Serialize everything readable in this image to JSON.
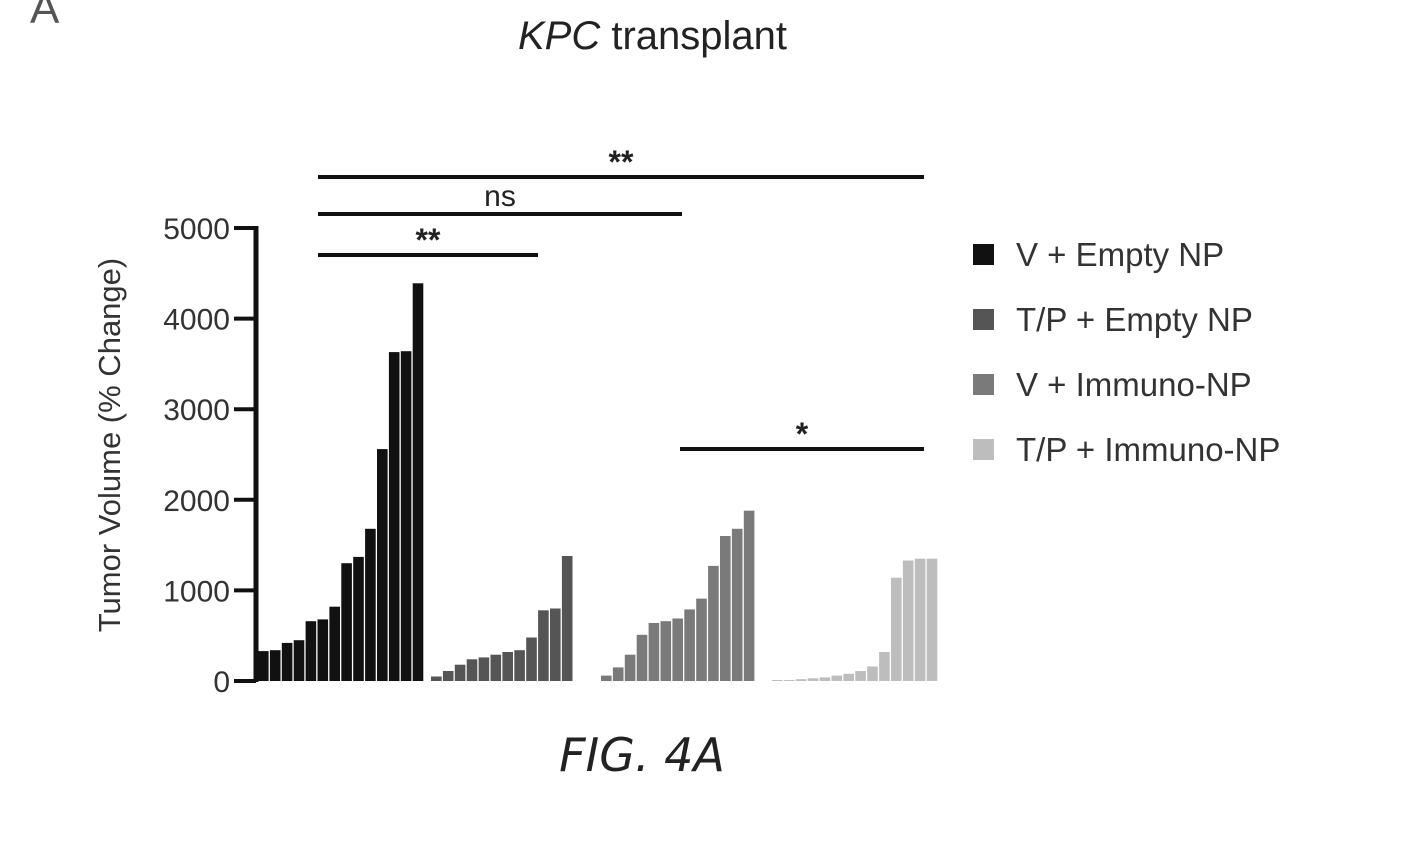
{
  "panel_letter": "A",
  "figure_caption": "FIG. 4A",
  "chart_data": {
    "type": "bar",
    "title_italic": "KPC",
    "title_rest": " transplant",
    "xlabel": "",
    "ylabel": "Tumor Volume (% Change)",
    "ylim": [
      0,
      5000
    ],
    "yticks": [
      0,
      1000,
      2000,
      3000,
      4000,
      5000
    ],
    "ytick_labels": [
      "0",
      "1000",
      "2000",
      "3000",
      "4000",
      "5000"
    ],
    "grid": false,
    "legend_position": "right",
    "legend": [
      {
        "label": "V + Empty NP",
        "color": "#111111"
      },
      {
        "label": "T/P + Empty NP",
        "color": "#555555"
      },
      {
        "label": "V + Immuno-NP",
        "color": "#7a7a7a"
      },
      {
        "label": "T/P + Immuno-NP",
        "color": "#bdbdbd"
      }
    ],
    "series": [
      {
        "name": "V + Empty NP",
        "color": "#111111",
        "values": [
          330,
          340,
          420,
          450,
          660,
          680,
          820,
          1300,
          1370,
          1680,
          2560,
          3630,
          3640,
          4390
        ]
      },
      {
        "name": "T/P + Empty NP",
        "color": "#555555",
        "values": [
          50,
          110,
          180,
          240,
          260,
          290,
          320,
          340,
          480,
          780,
          800,
          1380
        ]
      },
      {
        "name": "V + Immuno-NP",
        "color": "#7a7a7a",
        "values": [
          60,
          150,
          290,
          510,
          640,
          660,
          690,
          790,
          910,
          1270,
          1600,
          1680,
          1880
        ]
      },
      {
        "name": "T/P + Immuno-NP",
        "color": "#bdbdbd",
        "values": [
          5,
          10,
          20,
          30,
          40,
          60,
          80,
          110,
          160,
          320,
          1140,
          1330,
          1350,
          1350
        ]
      }
    ],
    "annotations": [
      {
        "label": "**",
        "from_group": 0,
        "to_group": 1
      },
      {
        "label": "ns",
        "from_group": 0,
        "to_group": 2
      },
      {
        "label": "**",
        "from_group": 0,
        "to_group": 3
      },
      {
        "label": "*",
        "from_group": 2,
        "to_group": 3
      }
    ]
  }
}
